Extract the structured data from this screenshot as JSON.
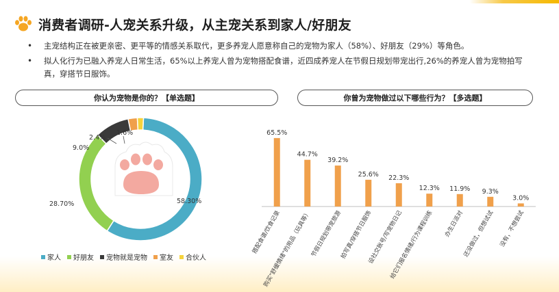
{
  "header": {
    "title": "消费者调研-人宠关系升级，从主宠关系到家人/好朋友",
    "accent_color": "#f5a623"
  },
  "bullets": [
    "主宠结构正在被更亲密、更平等的情感关系取代，更多养宠人愿意称自己的宠物为家人（58%）、好朋友（29%）等角色。",
    "拟人化行为已融入养宠人日常生活，65%以上养宠人曾为宠物搭配食谱，近四成养宠人在节假日规划带宠出行,26%的养宠人曾为宠物拍写真，穿搭节日服饰。"
  ],
  "left_panel": {
    "question": "你认为宠物是你的？【单选题】"
  },
  "right_panel": {
    "question": "你曾为宠物做过以下哪些行为？【多选题】"
  },
  "chart_data": [
    {
      "type": "pie",
      "variant": "donut",
      "labels": [
        "家人",
        "好朋友",
        "宠物就是宠物",
        "室友",
        "合伙人"
      ],
      "values": [
        58.3,
        28.7,
        9.0,
        2.4,
        1.6
      ],
      "value_labels": [
        "58.30%",
        "28.70%",
        "9.0%",
        "2.4%",
        "1.6%"
      ],
      "colors": [
        "#4bacc6",
        "#92d050",
        "#3a3a3a",
        "#f0a04b",
        "#f5d33c"
      ],
      "legend_position": "bottom",
      "center_icon": "cat-paw-icon"
    },
    {
      "type": "bar",
      "categories": [
        "搭配食谱/饮食记录",
        "购买\"舒缓情绪\"的用品（玩具等）",
        "节假日规划带宠旅游",
        "拍写真/穿搭节日服饰",
        "设社交账号/写宠物日记",
        "给它们报名情绪/行为课程训练",
        "办生日派对",
        "还没做过，但想试试",
        "没有，不想尝试"
      ],
      "values": [
        65.5,
        44.7,
        39.2,
        25.6,
        22.3,
        12.3,
        11.9,
        9.3,
        3.0
      ],
      "value_labels": [
        "65.5%",
        "44.7%",
        "39.2%",
        "25.6%",
        "22.3%",
        "12.3%",
        "11.9%",
        "9.3%",
        "3.0%"
      ],
      "color": "#f0a04b",
      "ylim": [
        0,
        70
      ],
      "grid": false
    }
  ]
}
